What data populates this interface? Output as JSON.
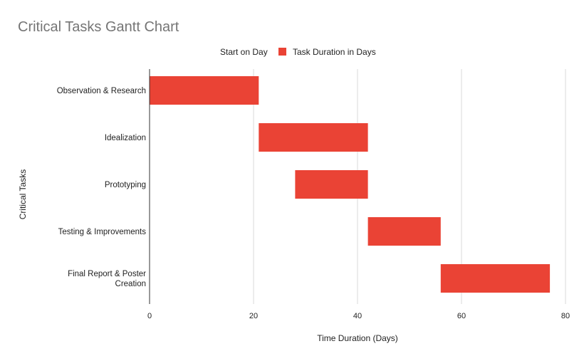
{
  "chart_data": {
    "type": "bar",
    "orientation": "horizontal",
    "stacked": true,
    "title": "Critical Tasks Gantt Chart",
    "xlabel": "Time Duration (Days)",
    "ylabel": "Critical Tasks",
    "xlim": [
      0,
      80
    ],
    "xticks": [
      0,
      20,
      40,
      60,
      80
    ],
    "grid": true,
    "legend_position": "top",
    "categories": [
      "Observation & Research",
      "Idealization",
      "Prototyping",
      "Testing & Improvements",
      "Final Report & Poster Creation"
    ],
    "series": [
      {
        "name": "Start on Day",
        "values": [
          0,
          21,
          28,
          42,
          56
        ],
        "color": "transparent"
      },
      {
        "name": "Task Duration in Days",
        "values": [
          21,
          21,
          14,
          14,
          21
        ],
        "color": "#ea4335"
      }
    ]
  }
}
